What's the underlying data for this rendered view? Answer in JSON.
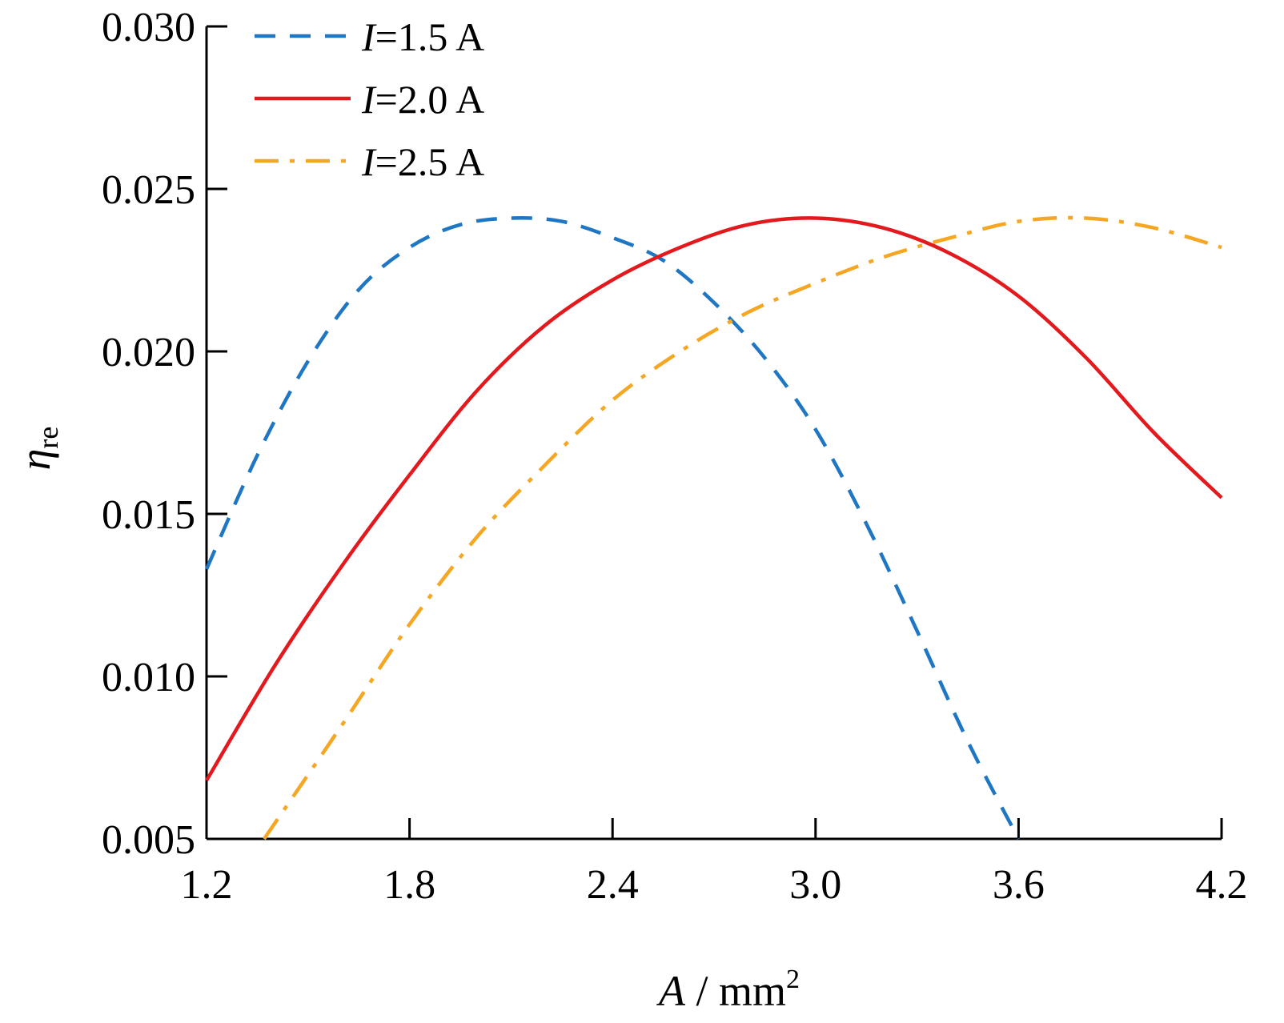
{
  "chart_data": {
    "type": "line",
    "title": "",
    "xlabel": {
      "var": "A",
      "sep": " / ",
      "unit": "mm",
      "sup": "2"
    },
    "ylabel": {
      "var": "η",
      "sub": "re"
    },
    "xlim": [
      1.2,
      4.2
    ],
    "ylim": [
      0.005,
      0.03
    ],
    "xticks": [
      1.2,
      1.8,
      2.4,
      3.0,
      3.6,
      4.2
    ],
    "xtick_labels": [
      "1.2",
      "1.8",
      "2.4",
      "3.0",
      "3.6",
      "4.2"
    ],
    "yticks": [
      0.005,
      0.01,
      0.015,
      0.02,
      0.025,
      0.03
    ],
    "ytick_labels": [
      "0.005",
      "0.010",
      "0.015",
      "0.020",
      "0.025",
      "0.030"
    ],
    "grid": false,
    "legend_position": "top-left",
    "series": [
      {
        "name_var": "I",
        "name_eq": "=",
        "name_value": "1.5 A",
        "color": "#1f77c4",
        "dash": "dashed",
        "x": [
          1.2,
          1.35,
          1.5,
          1.65,
          1.8,
          1.95,
          2.1,
          2.25,
          2.4,
          2.55,
          2.7,
          2.85,
          3.0,
          3.15,
          3.3,
          3.45,
          3.6
        ],
        "y": [
          0.0133,
          0.0168,
          0.0197,
          0.0219,
          0.0232,
          0.0239,
          0.0241,
          0.024,
          0.0235,
          0.0228,
          0.0215,
          0.0198,
          0.0176,
          0.0147,
          0.0114,
          0.008,
          0.005
        ]
      },
      {
        "name_var": "I",
        "name_eq": "=",
        "name_value": "2.0 A",
        "color": "#e3191e",
        "dash": "solid",
        "x": [
          1.2,
          1.4,
          1.6,
          1.8,
          2.0,
          2.2,
          2.4,
          2.6,
          2.8,
          3.0,
          3.2,
          3.4,
          3.6,
          3.8,
          4.0,
          4.2
        ],
        "y": [
          0.0068,
          0.0103,
          0.0134,
          0.0162,
          0.0188,
          0.0208,
          0.0222,
          0.0232,
          0.0239,
          0.0241,
          0.0238,
          0.023,
          0.0217,
          0.0198,
          0.0175,
          0.0155
        ]
      },
      {
        "name_var": "I",
        "name_eq": "=",
        "name_value": "2.5 A",
        "color": "#f5a623",
        "dash": "dashdot",
        "x": [
          1.37,
          1.6,
          1.8,
          2.0,
          2.2,
          2.4,
          2.6,
          2.8,
          3.0,
          3.2,
          3.4,
          3.6,
          3.8,
          4.0,
          4.2
        ],
        "y": [
          0.005,
          0.0085,
          0.0116,
          0.0143,
          0.0165,
          0.0185,
          0.02,
          0.0212,
          0.0221,
          0.0229,
          0.0235,
          0.024,
          0.0241,
          0.0238,
          0.0232
        ]
      }
    ]
  }
}
